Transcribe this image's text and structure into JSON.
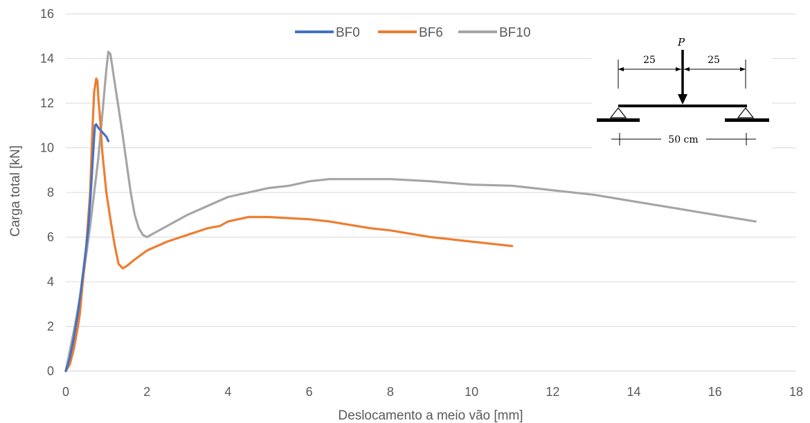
{
  "chart_data": {
    "type": "line",
    "xlabel": "Deslocamento a meio vão [mm]",
    "ylabel": "Carga total [kN]",
    "xlim": [
      0,
      18
    ],
    "ylim": [
      0,
      16
    ],
    "xticks": [
      0,
      2,
      4,
      6,
      8,
      10,
      12,
      14,
      16,
      18
    ],
    "yticks": [
      0,
      2,
      4,
      6,
      8,
      10,
      12,
      14,
      16
    ],
    "grid": "horizontal",
    "legend_position": "top-center",
    "series": [
      {
        "name": "BF0",
        "color": "#4472C4",
        "x": [
          0,
          0.1,
          0.2,
          0.3,
          0.4,
          0.5,
          0.55,
          0.6,
          0.65,
          0.7,
          0.72,
          0.75,
          0.8,
          0.9,
          1.0,
          1.05
        ],
        "y": [
          0,
          0.6,
          1.5,
          2.6,
          4.0,
          5.5,
          6.3,
          7.5,
          9.0,
          10.5,
          11.0,
          11.05,
          10.9,
          10.7,
          10.5,
          10.3
        ]
      },
      {
        "name": "BF6",
        "color": "#ED7D31",
        "x": [
          0,
          0.1,
          0.2,
          0.3,
          0.35,
          0.4,
          0.5,
          0.6,
          0.65,
          0.7,
          0.75,
          0.78,
          0.8,
          0.85,
          0.9,
          1.0,
          1.1,
          1.2,
          1.3,
          1.4,
          1.5,
          1.7,
          2.0,
          2.5,
          3.0,
          3.5,
          3.8,
          4.0,
          4.5,
          5.0,
          5.5,
          6.0,
          6.5,
          7.0,
          7.5,
          8.0,
          8.5,
          9.0,
          9.5,
          10.0,
          10.5,
          11.0
        ],
        "y": [
          0,
          0.3,
          1.0,
          2.0,
          2.6,
          3.6,
          5.5,
          8.0,
          10.5,
          12.5,
          13.1,
          13.0,
          12.3,
          11.2,
          9.8,
          8.0,
          6.8,
          5.7,
          4.8,
          4.6,
          4.7,
          5.0,
          5.4,
          5.8,
          6.1,
          6.4,
          6.5,
          6.7,
          6.9,
          6.9,
          6.85,
          6.8,
          6.7,
          6.55,
          6.4,
          6.3,
          6.15,
          6.0,
          5.9,
          5.8,
          5.7,
          5.6
        ]
      },
      {
        "name": "BF10",
        "color": "#A5A5A5",
        "x": [
          0,
          0.2,
          0.4,
          0.6,
          0.8,
          0.9,
          1.0,
          1.05,
          1.1,
          1.2,
          1.3,
          1.4,
          1.5,
          1.6,
          1.7,
          1.8,
          1.9,
          2.0,
          2.2,
          2.5,
          3.0,
          3.5,
          4.0,
          4.5,
          5.0,
          5.5,
          6.0,
          6.5,
          7.0,
          7.5,
          8.0,
          9.0,
          10.0,
          11.0,
          12.0,
          13.0,
          14.0,
          15.0,
          16.0,
          17.0
        ],
        "y": [
          0,
          1.8,
          3.8,
          6.5,
          9.5,
          11.5,
          13.5,
          14.3,
          14.2,
          13.0,
          11.8,
          10.6,
          9.3,
          8.0,
          7.0,
          6.4,
          6.1,
          6.0,
          6.2,
          6.5,
          7.0,
          7.4,
          7.8,
          8.0,
          8.2,
          8.3,
          8.5,
          8.6,
          8.6,
          8.6,
          8.6,
          8.5,
          8.35,
          8.3,
          8.1,
          7.9,
          7.6,
          7.3,
          7.0,
          6.7
        ]
      }
    ],
    "inset": {
      "load_label": "P",
      "left_dim": "25",
      "right_dim": "25",
      "span_label": "50 cm"
    }
  }
}
